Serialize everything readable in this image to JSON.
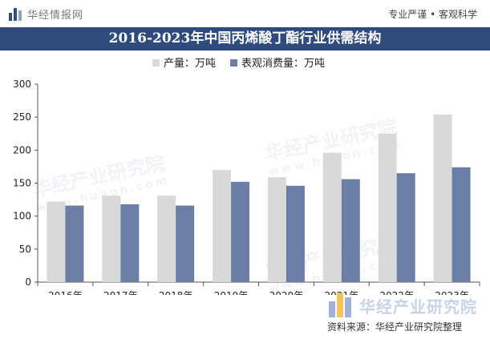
{
  "header": {
    "brand_name": "华经情报网",
    "slogan": "专业严谨 • 客观科学"
  },
  "watermark": {
    "text": "华经产业研究院",
    "url": "www.huaon.com"
  },
  "footer": {
    "logo_text": "华经产业研究院",
    "source": "资料来源：华经产业研究院整理"
  },
  "colors": {
    "title_bar": "#2f4a7c",
    "production": "#d9d9d9",
    "consumption": "#6b7fa6"
  },
  "chart_data": {
    "type": "bar",
    "title": "2016-2023年中国丙烯酸丁酯行业供需结构",
    "categories": [
      "2016年",
      "2017年",
      "2018年",
      "2019年",
      "2020年",
      "2021年",
      "2022年",
      "2023年"
    ],
    "series": [
      {
        "name": "产量：万吨",
        "values": [
          122,
          131,
          131,
          170,
          159,
          196,
          225,
          254
        ]
      },
      {
        "name": "表观消费量：万吨",
        "values": [
          116,
          118,
          116,
          152,
          146,
          156,
          165,
          174
        ]
      }
    ],
    "ylim": [
      0,
      300
    ],
    "yticks": [
      0,
      50,
      100,
      150,
      200,
      250,
      300
    ],
    "xlabel": "",
    "ylabel": "",
    "grid": false,
    "legend": "top-center"
  }
}
